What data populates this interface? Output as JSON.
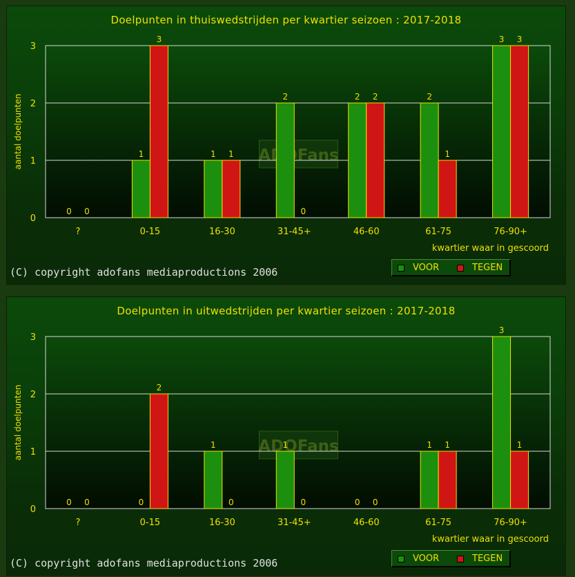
{
  "chart_data": [
    {
      "type": "bar",
      "title": "Doelpunten in thuiswedstrijden per kwartier seizoen : 2017-2018",
      "ylabel": "aantal doelpunten",
      "xlabel": "kwartier waar in gescoord",
      "categories": [
        "?",
        "0-15",
        "16-30",
        "31-45+",
        "46-60",
        "61-75",
        "76-90+"
      ],
      "yticks": [
        "0",
        "1",
        "2",
        "3"
      ],
      "ylim": [
        0,
        3
      ],
      "grid": true,
      "legend_position": "bottom-right",
      "series": [
        {
          "name": "VOOR",
          "color": "#1c8f0f",
          "values": [
            0,
            1,
            1,
            2,
            2,
            2,
            3
          ]
        },
        {
          "name": "TEGEN",
          "color": "#d01515",
          "values": [
            0,
            3,
            1,
            0,
            2,
            1,
            3
          ]
        }
      ],
      "watermark": "ADOFans",
      "copyright": "(C) copyright adofans mediaproductions 2006"
    },
    {
      "type": "bar",
      "title": "Doelpunten in uitwedstrijden per kwartier seizoen : 2017-2018",
      "ylabel": "aantal doelpunten",
      "xlabel": "kwartier waar in gescoord",
      "categories": [
        "?",
        "0-15",
        "16-30",
        "31-45+",
        "46-60",
        "61-75",
        "76-90+"
      ],
      "yticks": [
        "0",
        "1",
        "2",
        "3"
      ],
      "ylim": [
        0,
        3
      ],
      "grid": true,
      "legend_position": "bottom-right",
      "series": [
        {
          "name": "VOOR",
          "color": "#1c8f0f",
          "values": [
            0,
            0,
            1,
            1,
            0,
            1,
            3
          ]
        },
        {
          "name": "TEGEN",
          "color": "#d01515",
          "values": [
            0,
            2,
            0,
            0,
            0,
            1,
            1
          ]
        }
      ],
      "watermark": "ADOFans",
      "copyright": "(C) copyright adofans mediaproductions 2006"
    }
  ]
}
